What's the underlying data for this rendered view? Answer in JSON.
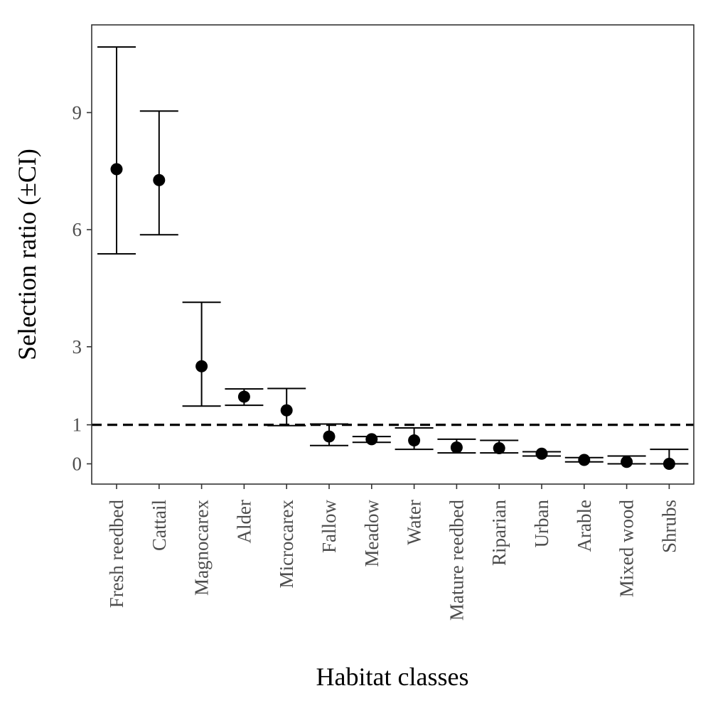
{
  "chart_data": {
    "type": "scatter",
    "title": "",
    "xlabel": "Habitat classes",
    "ylabel": "Selection ratio (±CI)",
    "ylim": [
      -0.5,
      11.3
    ],
    "yticks": [
      {
        "value": 0,
        "label": "0"
      },
      {
        "value": 1,
        "label": "1"
      },
      {
        "value": 3,
        "label": "3"
      },
      {
        "value": 6,
        "label": "6"
      },
      {
        "value": 9,
        "label": "9"
      }
    ],
    "reference_line": {
      "value": 1,
      "style": "dashed"
    },
    "grid": false,
    "categories": [
      "Fresh reedbed",
      "Cattail",
      "Magnocarex",
      "Alder",
      "Microcarex",
      "Fallow",
      "Meadow",
      "Water",
      "Mature reedbed",
      "Riparian",
      "Urban",
      "Arable",
      "Mixed wood",
      "Shrubs"
    ],
    "values": [
      7.55,
      7.27,
      2.5,
      1.72,
      1.37,
      0.7,
      0.63,
      0.6,
      0.42,
      0.4,
      0.26,
      0.1,
      0.05,
      0.0
    ],
    "ci_lower": [
      5.38,
      5.87,
      1.48,
      1.5,
      0.98,
      0.47,
      0.55,
      0.37,
      0.28,
      0.28,
      0.2,
      0.05,
      0.0,
      0.0
    ],
    "ci_upper": [
      10.68,
      9.04,
      4.14,
      1.92,
      1.93,
      1.02,
      0.7,
      0.92,
      0.63,
      0.6,
      0.31,
      0.16,
      0.2,
      0.37
    ]
  },
  "colors": {
    "points": "#000000",
    "errorbars": "#000000",
    "panel_border": "#333333",
    "tick_text": "#4d4d4d"
  }
}
